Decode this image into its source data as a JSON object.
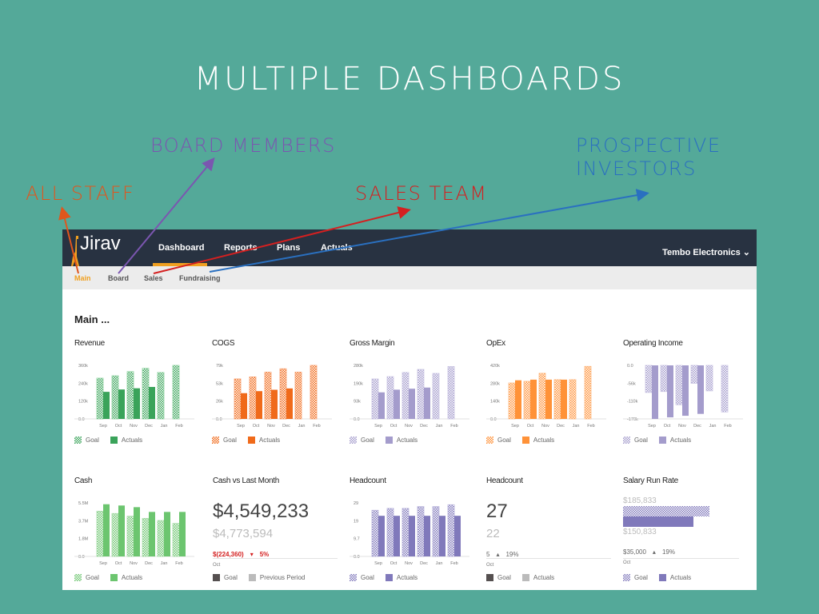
{
  "slide": {
    "title": "MULTIPLE DASHBOARDS",
    "annotations": [
      {
        "label": "ALL STAFF",
        "color": "#e0561d"
      },
      {
        "label": "BOARD MEMBERS",
        "color": "#7b56b0"
      },
      {
        "label": "SALES TEAM",
        "color": "#d42020"
      },
      {
        "label": "PROSPECTIVE INVESTORS",
        "color": "#2a70c0"
      }
    ]
  },
  "app": {
    "logo": "Jirav",
    "nav": [
      "Dashboard",
      "Reports",
      "Plans",
      "Actuals"
    ],
    "active_nav": "Dashboard",
    "company": "Tembo Electronics ⌄",
    "subnav": [
      "Main",
      "Board",
      "Sales",
      "Fundraising"
    ],
    "active_subnav": "Main",
    "page_title": "Main ..."
  },
  "legend": {
    "goal": "Goal",
    "actuals": "Actuals",
    "previous": "Previous Period"
  },
  "chart_data": [
    {
      "type": "bar",
      "title": "Revenue",
      "categories": [
        "Sep",
        "Oct",
        "Nov",
        "Dec",
        "Jan",
        "Feb"
      ],
      "yticks": [
        "0.0",
        "120k",
        "240k",
        "360k"
      ],
      "ylim": [
        0,
        360
      ],
      "color": "#3aa35a",
      "goal_color": "#8fd3a0",
      "series": [
        {
          "name": "Goal",
          "values": [
            274,
            290,
            318,
            340,
            312,
            360
          ]
        },
        {
          "name": "Actuals",
          "values": [
            182,
            198,
            206,
            215,
            null,
            null
          ]
        }
      ]
    },
    {
      "type": "bar",
      "title": "COGS",
      "categories": [
        "Sep",
        "Oct",
        "Nov",
        "Dec",
        "Jan",
        "Feb"
      ],
      "yticks": [
        "0.0",
        "26k",
        "53k",
        "79k"
      ],
      "ylim": [
        0,
        79
      ],
      "color": "#f06a1a",
      "goal_color": "#f7a070",
      "series": [
        {
          "name": "Goal",
          "values": [
            59,
            62,
            69,
            74,
            69,
            79
          ]
        },
        {
          "name": "Actuals",
          "values": [
            38,
            41,
            43,
            45,
            null,
            null
          ]
        }
      ]
    },
    {
      "type": "bar",
      "title": "Gross Margin",
      "categories": [
        "Sep",
        "Oct",
        "Nov",
        "Dec",
        "Jan",
        "Feb"
      ],
      "yticks": [
        "0.0",
        "93k",
        "190k",
        "280k"
      ],
      "ylim": [
        0,
        280
      ],
      "color": "#a49ccc",
      "goal_color": "#cbc6e4",
      "series": [
        {
          "name": "Goal",
          "values": [
            209,
            221,
            243,
            259,
            238,
            274
          ]
        },
        {
          "name": "Actuals",
          "values": [
            139,
            153,
            158,
            164,
            null,
            null
          ]
        }
      ]
    },
    {
      "type": "bar",
      "title": "OpEx",
      "categories": [
        "Sep",
        "Oct",
        "Nov",
        "Dec",
        "Jan",
        "Feb"
      ],
      "yticks": [
        "0.0",
        "140k",
        "280k",
        "420k"
      ],
      "ylim": [
        0,
        420
      ],
      "color": "#ff9238",
      "goal_color": "#fcbc88",
      "series": [
        {
          "name": "Goal",
          "values": [
            282,
            295,
            358,
            308,
            308,
            412
          ]
        },
        {
          "name": "Actuals",
          "values": [
            303,
            308,
            308,
            308,
            null,
            null
          ]
        }
      ]
    },
    {
      "type": "bar",
      "title": "Operating Income",
      "categories": [
        "Sep",
        "Oct",
        "Nov",
        "Dec",
        "Jan",
        "Feb"
      ],
      "yticks": [
        "-170k",
        "-110k",
        "-56k",
        "0.0"
      ],
      "ylim": [
        -170,
        0
      ],
      "color": "#a49ccc",
      "goal_color": "#cbc6e4",
      "series": [
        {
          "name": "Goal",
          "values": [
            -86,
            -83,
            -125,
            -57,
            -81,
            -148
          ]
        },
        {
          "name": "Actuals",
          "values": [
            -170,
            -165,
            -160,
            -154,
            null,
            null
          ]
        }
      ]
    },
    {
      "type": "bar",
      "title": "Cash",
      "categories": [
        "Sep",
        "Oct",
        "Nov",
        "Dec",
        "Jan",
        "Feb"
      ],
      "yticks": [
        "0.0",
        "1.8M",
        "3.7M",
        "5.5M"
      ],
      "ylim": [
        0,
        5.5
      ],
      "color": "#6cc56f",
      "goal_color": "#a9dcaa",
      "series": [
        {
          "name": "Goal",
          "values": [
            4.65,
            4.41,
            4.13,
            3.91,
            3.69,
            3.39
          ]
        },
        {
          "name": "Actuals",
          "values": [
            5.36,
            5.23,
            5.06,
            4.57,
            4.57,
            4.57
          ]
        }
      ]
    },
    {
      "type": "bar",
      "title": "Headcount",
      "categories": [
        "Sep",
        "Oct",
        "Nov",
        "Dec",
        "Jan",
        "Feb"
      ],
      "yticks": [
        "0.0",
        "9.7",
        "19",
        "29"
      ],
      "ylim": [
        0,
        29
      ],
      "color": "#8079bb",
      "goal_color": "#bab5dc",
      "series": [
        {
          "name": "Goal",
          "values": [
            25,
            26,
            26,
            27,
            27,
            28
          ]
        },
        {
          "name": "Actuals",
          "values": [
            22,
            22,
            22,
            22,
            22,
            22
          ]
        }
      ]
    }
  ],
  "kpis": {
    "cash_vs_last_month": {
      "title": "Cash vs Last Month",
      "value": "$4,549,233",
      "previous": "$4,773,594",
      "delta": "$(224,360)",
      "delta_arrow": "▾",
      "delta_pct": "5%",
      "month": "Oct",
      "goal_color": "#555050",
      "prev_color": "#bbbbbb"
    },
    "headcount": {
      "title": "Headcount",
      "value": "27",
      "previous": "22",
      "delta": "5",
      "delta_arrow": "▴",
      "delta_pct": "19%",
      "month": "Oct"
    },
    "salary": {
      "title": "Salary Run Rate",
      "goal": "$185,833",
      "actual": "$150,833",
      "goal_value": 185833,
      "actual_value": 150833,
      "delta": "$35,000",
      "delta_arrow": "▴",
      "delta_pct": "19%",
      "month": "Oct"
    }
  }
}
